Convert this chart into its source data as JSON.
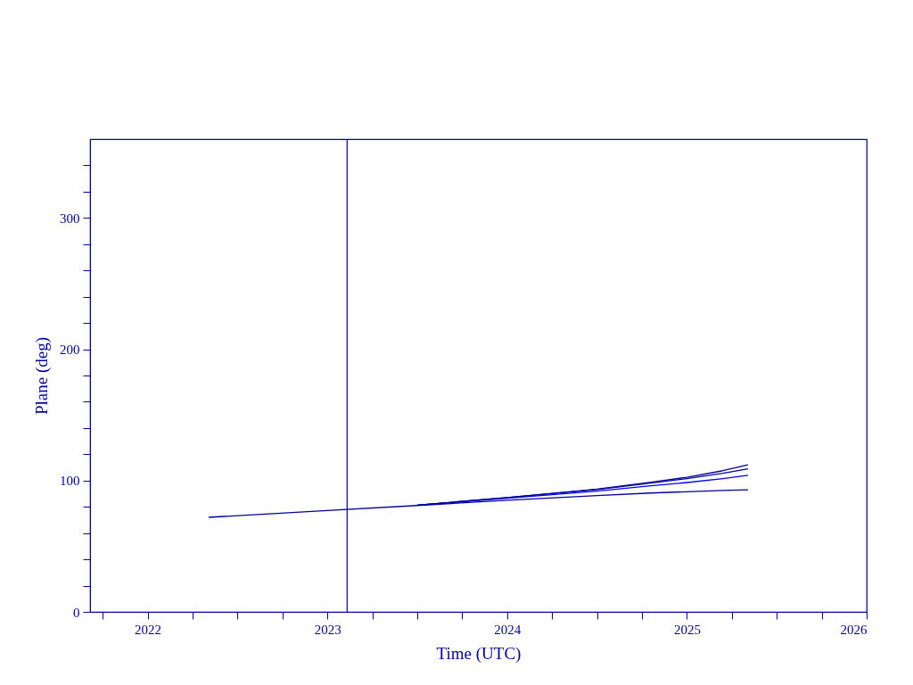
{
  "chart_data": {
    "type": "line",
    "xlabel": "Time (UTC)",
    "ylabel": "Plane (deg)",
    "xlim": [
      2021.68,
      2026
    ],
    "ylim": [
      0,
      360
    ],
    "xticks": [
      {
        "value": 2021.75,
        "label": null
      },
      2022,
      {
        "value": 2022.25,
        "label": null
      },
      {
        "value": 2022.5,
        "label": null
      },
      {
        "value": 2022.75,
        "label": null
      },
      2023,
      {
        "value": 2023.25,
        "label": null
      },
      {
        "value": 2023.5,
        "label": null
      },
      {
        "value": 2023.75,
        "label": null
      },
      2024,
      {
        "value": 2024.25,
        "label": null
      },
      {
        "value": 2024.5,
        "label": null
      },
      {
        "value": 2024.75,
        "label": null
      },
      2025,
      {
        "value": 2025.25,
        "label": null
      },
      {
        "value": 2025.5,
        "label": null
      },
      {
        "value": 2025.75,
        "label": null
      },
      2026
    ],
    "yticks": [
      0,
      {
        "value": 20,
        "label": null
      },
      {
        "value": 40,
        "label": null
      },
      {
        "value": 60,
        "label": null
      },
      {
        "value": 80,
        "label": null
      },
      100,
      {
        "value": 120,
        "label": null
      },
      {
        "value": 140,
        "label": null
      },
      {
        "value": 160,
        "label": null
      },
      {
        "value": 180,
        "label": null
      },
      200,
      {
        "value": 220,
        "label": null
      },
      {
        "value": 240,
        "label": null
      },
      {
        "value": 260,
        "label": null
      },
      {
        "value": 280,
        "label": null
      },
      300,
      {
        "value": 320,
        "label": null
      },
      {
        "value": 340,
        "label": null
      }
    ],
    "x": [
      2022.34,
      2023.0,
      2023.5,
      2024.0,
      2024.5,
      2024.8,
      2025.0,
      2025.2,
      2025.34
    ],
    "series": [
      {
        "color": "#0000a0",
        "values": [
          72,
          77.2,
          81,
          85,
          88.5,
          90.5,
          91.5,
          92.5,
          93
        ]
      },
      {
        "color": "#0000ff",
        "values": [
          null,
          null,
          81.2,
          86.5,
          92,
          96,
          98.5,
          101.5,
          104
        ]
      },
      {
        "color": "#0000a0",
        "values": [
          null,
          null,
          81.3,
          87,
          93.2,
          98,
          101.5,
          105.5,
          109
        ]
      },
      {
        "color": "#0000a0",
        "values": [
          null,
          null,
          81.3,
          87,
          93.5,
          98.7,
          102.5,
          107.5,
          112
        ]
      }
    ],
    "ref_lines": [
      {
        "axis": "x",
        "value": 2023.11,
        "color": "#0000a0"
      }
    ],
    "grid": false,
    "legend": false
  }
}
